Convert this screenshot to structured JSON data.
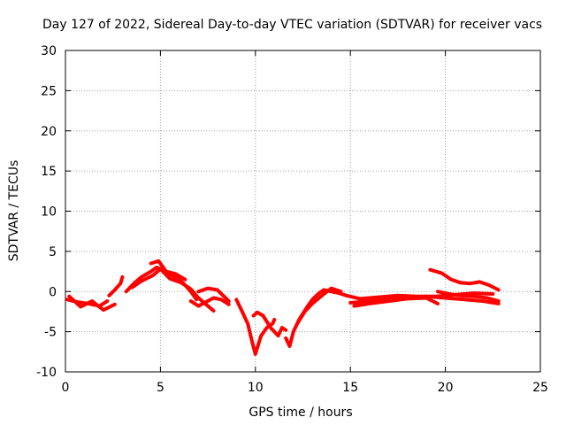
{
  "chart_data": {
    "type": "line",
    "title": "Day 127 of 2022, Sidereal Day-to-day VTEC variation (SDTVAR) for receiver vacs",
    "xlabel": "GPS time / hours",
    "ylabel": "SDTVAR / TECUs",
    "xlim": [
      0,
      25
    ],
    "ylim": [
      -10,
      30
    ],
    "xticks": [
      0,
      5,
      10,
      15,
      20,
      25
    ],
    "yticks": [
      -10,
      -5,
      0,
      5,
      10,
      15,
      20,
      25,
      30
    ],
    "xtick_labels": [
      "0",
      "5",
      "10",
      "15",
      "20",
      "25"
    ],
    "ytick_labels": [
      "-10",
      "-5",
      "0",
      "5",
      "10",
      "15",
      "20",
      "25",
      "30"
    ],
    "grid": true,
    "series": [
      {
        "name": "SDTVAR",
        "color": "#ff0000",
        "segments": [
          {
            "x": [
              0.1,
              0.6,
              1.2,
              1.8,
              2.2
            ],
            "y": [
              -1.0,
              -1.3,
              -1.5,
              -1.8,
              -1.2
            ]
          },
          {
            "x": [
              0.2,
              0.8,
              1.4,
              2.0,
              2.6
            ],
            "y": [
              -0.6,
              -1.9,
              -1.2,
              -2.3,
              -1.6
            ]
          },
          {
            "x": [
              2.3,
              2.6,
              2.9,
              3.0
            ],
            "y": [
              -0.5,
              0.2,
              1.0,
              1.8
            ]
          },
          {
            "x": [
              3.2,
              3.6,
              4.0,
              4.5,
              4.8,
              5.2,
              5.6,
              6.0,
              6.3,
              6.6,
              6.9
            ],
            "y": [
              0.0,
              1.0,
              1.8,
              2.5,
              3.0,
              2.6,
              2.0,
              1.5,
              0.8,
              0.0,
              -1.0
            ]
          },
          {
            "x": [
              3.5,
              4.0,
              4.6,
              5.0,
              5.5,
              6.1,
              6.6,
              7.0,
              7.4,
              7.8
            ],
            "y": [
              0.5,
              1.3,
              2.0,
              2.8,
              1.6,
              1.1,
              0.3,
              -0.8,
              -1.6,
              -2.4
            ]
          },
          {
            "x": [
              4.5,
              4.9,
              5.3,
              5.8,
              6.3
            ],
            "y": [
              3.5,
              3.8,
              2.5,
              2.2,
              1.5
            ]
          },
          {
            "x": [
              6.6,
              7.0,
              7.4,
              7.8,
              8.2,
              8.6
            ],
            "y": [
              -1.2,
              -1.8,
              -1.3,
              -0.8,
              -1.0,
              -1.6
            ]
          },
          {
            "x": [
              7.0,
              7.5,
              8.0,
              8.3,
              8.6
            ],
            "y": [
              0.0,
              0.4,
              0.2,
              -0.5,
              -1.2
            ]
          },
          {
            "x": [
              9.0,
              9.3,
              9.6,
              9.8,
              10.0,
              10.1,
              10.3,
              10.6,
              10.9,
              11.0
            ],
            "y": [
              -1.0,
              -2.5,
              -4.0,
              -6.0,
              -7.8,
              -7.0,
              -5.5,
              -4.5,
              -4.0,
              -3.5
            ]
          },
          {
            "x": [
              9.9,
              10.1,
              10.4
            ],
            "y": [
              -3.0,
              -2.6,
              -3.0
            ]
          },
          {
            "x": [
              10.4,
              10.8,
              11.2,
              11.4,
              11.6
            ],
            "y": [
              -3.0,
              -4.5,
              -5.5,
              -4.5,
              -4.8
            ]
          },
          {
            "x": [
              11.6,
              11.8,
              12.0,
              12.3,
              12.7,
              13.0,
              13.3,
              13.6,
              14.0,
              14.4,
              14.8
            ],
            "y": [
              -5.8,
              -6.8,
              -5.0,
              -3.5,
              -2.0,
              -1.0,
              -0.3,
              0.2,
              0.0,
              -0.2,
              -0.5
            ]
          },
          {
            "x": [
              12.2,
              12.6,
              13.0,
              13.5,
              14.0,
              14.5
            ],
            "y": [
              -4.0,
              -2.5,
              -1.5,
              -0.5,
              0.4,
              0.0
            ]
          },
          {
            "x": [
              14.8,
              15.5,
              16.5,
              17.5,
              18.5,
              19.5,
              20.5,
              21.5,
              22.5
            ],
            "y": [
              -0.5,
              -0.9,
              -0.7,
              -0.5,
              -0.6,
              -0.6,
              -0.4,
              -0.2,
              -0.3
            ]
          },
          {
            "x": [
              15.0,
              16.0,
              17.0,
              18.0,
              19.0,
              20.0,
              21.0,
              22.0,
              22.8
            ],
            "y": [
              -1.4,
              -1.2,
              -1.0,
              -0.8,
              -0.6,
              -0.8,
              -1.0,
              -1.2,
              -1.5
            ]
          },
          {
            "x": [
              15.2,
              16.0,
              17.0,
              18.0,
              19.0,
              19.6
            ],
            "y": [
              -1.8,
              -1.5,
              -1.2,
              -0.9,
              -0.8,
              -1.5
            ]
          },
          {
            "x": [
              19.2,
              19.8,
              20.3,
              20.8,
              21.3,
              21.8,
              22.3,
              22.8
            ],
            "y": [
              2.7,
              2.3,
              1.5,
              1.1,
              1.0,
              1.2,
              0.8,
              0.2
            ]
          },
          {
            "x": [
              19.6,
              20.2,
              20.8,
              21.5,
              22.2,
              22.8
            ],
            "y": [
              0.0,
              -0.3,
              -0.5,
              -0.6,
              -0.8,
              -1.2
            ]
          }
        ]
      }
    ]
  }
}
